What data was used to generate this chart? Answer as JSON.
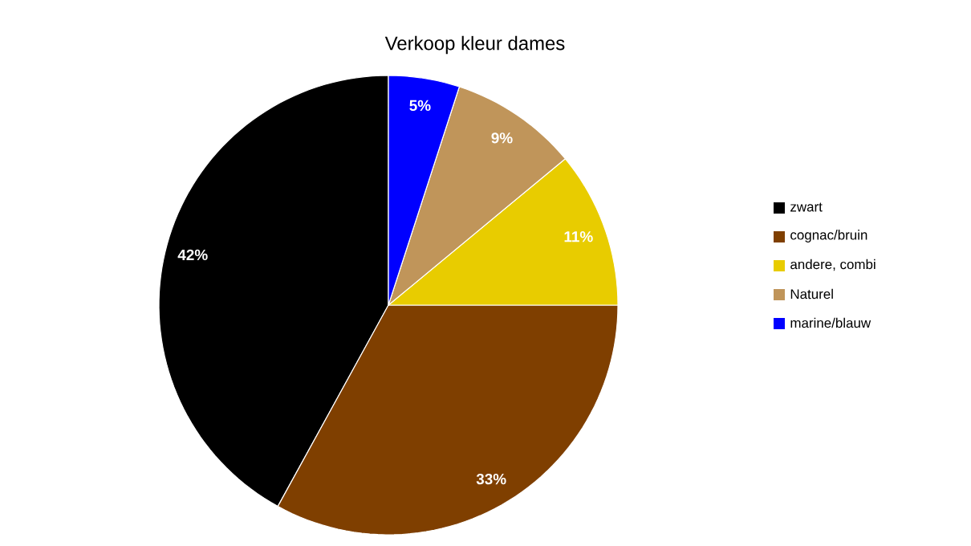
{
  "chart_data": {
    "type": "pie",
    "title": "Verkoop kleur dames",
    "categories": [
      "zwart",
      "cognac/bruin",
      "andere, combi",
      "Naturel",
      "marine/blauw"
    ],
    "values": [
      42,
      33,
      11,
      9,
      5
    ],
    "value_labels": [
      "42%",
      "33%",
      "11%",
      "9%",
      "5%"
    ],
    "colors": [
      "#000000",
      "#7f3f00",
      "#e8cc00",
      "#c0955a",
      "#0000ff"
    ],
    "legend": "right"
  }
}
